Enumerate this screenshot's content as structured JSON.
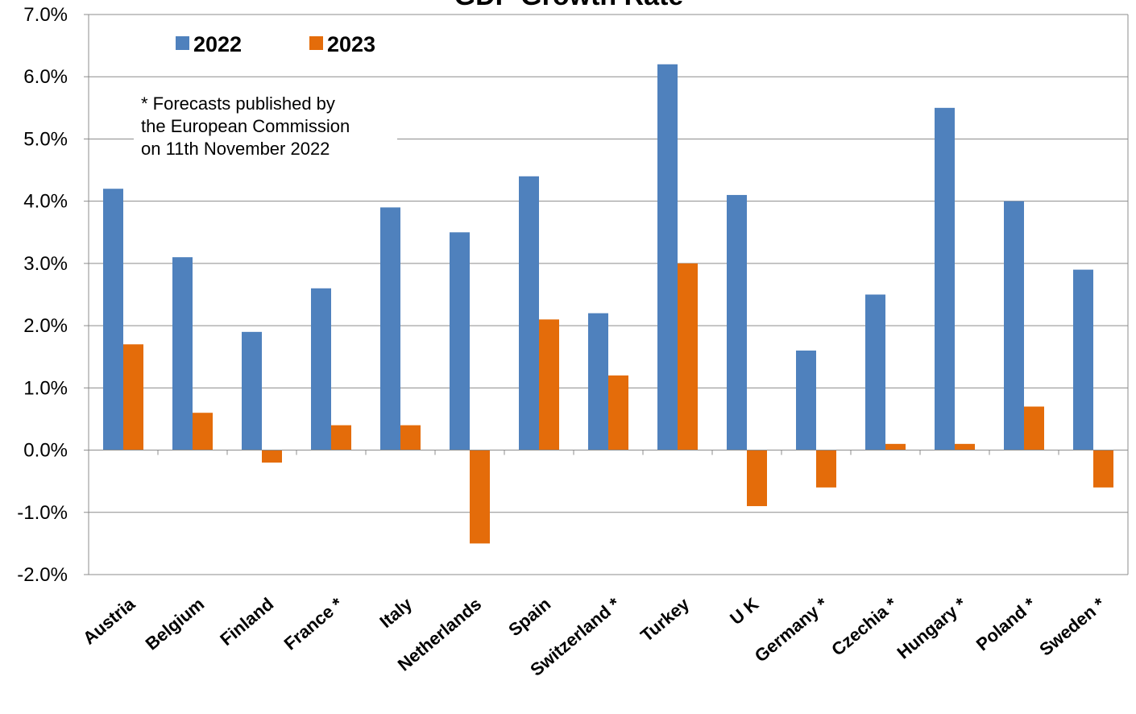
{
  "chart_data": {
    "type": "bar",
    "title": "GDP  Growth Rate",
    "xlabel": "",
    "ylabel": "",
    "ylim": [
      -2.0,
      7.0
    ],
    "ytick_step": 1.0,
    "ytick_labels": [
      "-2.0%",
      "-1.0%",
      "0.0%",
      "1.0%",
      "2.0%",
      "3.0%",
      "4.0%",
      "5.0%",
      "6.0%",
      "7.0%"
    ],
    "grid": true,
    "legend_position": "top-left",
    "categories": [
      "Austria",
      "Belgium",
      "Finland",
      "France *",
      "Italy",
      "Netherlands",
      "Spain",
      "Switzerland *",
      "Turkey",
      "U K",
      "Germany *",
      "Czechia *",
      "Hungary *",
      "Poland *",
      "Sweden *"
    ],
    "series": [
      {
        "name": "2022",
        "color": "#4f81bd",
        "values": [
          4.2,
          3.1,
          1.9,
          2.6,
          3.9,
          3.5,
          4.4,
          2.2,
          6.2,
          4.1,
          1.6,
          2.5,
          5.5,
          4.0,
          2.9
        ]
      },
      {
        "name": "2023",
        "color": "#e46c0a",
        "values": [
          1.7,
          0.6,
          -0.2,
          0.4,
          0.4,
          -1.5,
          2.1,
          1.2,
          3.0,
          -0.9,
          -0.6,
          0.1,
          0.1,
          0.7,
          -0.6
        ]
      }
    ],
    "annotation": {
      "lines": [
        "* Forecasts published by",
        "the European Commission",
        "on 11th November 2022"
      ]
    }
  }
}
